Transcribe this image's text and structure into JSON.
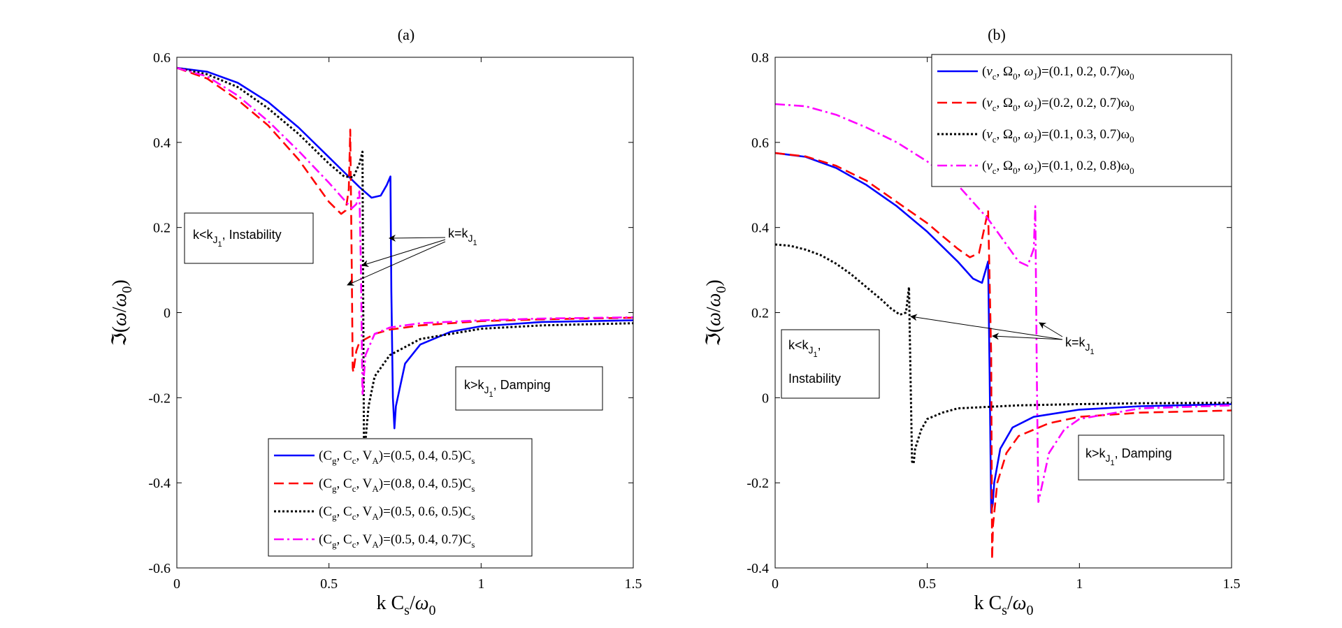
{
  "chart_data": [
    {
      "type": "line",
      "title": "(a)",
      "xlabel": "k C_s/ω_0",
      "ylabel": "ℑ(ω/ω_0)",
      "xlim": [
        0,
        1.5
      ],
      "ylim": [
        -0.6,
        0.6
      ],
      "xticks": [
        0,
        0.5,
        1,
        1.5
      ],
      "xtick_labels": [
        "0",
        "0.5",
        "1",
        "1.5"
      ],
      "yticks": [
        -0.6,
        -0.4,
        -0.2,
        0,
        0.2,
        0.4,
        0.6
      ],
      "ytick_labels": [
        "-0.6",
        "-0.4",
        "-0.2",
        "0",
        "0.2",
        "0.4",
        "0.6"
      ],
      "legend_position": "bottom-center",
      "legend_var_labels": [
        "C",
        "g",
        "C",
        "c",
        "V",
        "A"
      ],
      "legend_sub": "s",
      "series": [
        {
          "name": "(C_g, C_c, V_A)=(0.5, 0.4, 0.5)C_s",
          "values_text": "=(0.5, 0.4, 0.5)C",
          "color": "#0000ff",
          "style": "solid",
          "x": [
            0,
            0.1,
            0.2,
            0.3,
            0.4,
            0.5,
            0.55,
            0.6,
            0.64,
            0.67,
            0.69,
            0.702,
            0.705,
            0.71,
            0.715,
            0.72,
            0.75,
            0.8,
            0.9,
            1.0,
            1.2,
            1.5
          ],
          "y": [
            0.575,
            0.566,
            0.54,
            0.495,
            0.435,
            0.365,
            0.33,
            0.295,
            0.27,
            0.275,
            0.3,
            0.32,
            0.05,
            -0.2,
            -0.272,
            -0.22,
            -0.12,
            -0.075,
            -0.045,
            -0.032,
            -0.022,
            -0.018
          ]
        },
        {
          "name": "(C_g, C_c, V_A)=(0.8, 0.4, 0.5)C_s",
          "values_text": "=(0.8, 0.4, 0.5)C",
          "color": "#ff0000",
          "style": "dashed",
          "x": [
            0,
            0.1,
            0.2,
            0.3,
            0.4,
            0.45,
            0.5,
            0.54,
            0.555,
            0.565,
            0.57,
            0.575,
            0.578,
            0.58,
            0.59,
            0.6,
            0.65,
            0.7,
            0.8,
            1.0,
            1.2,
            1.5
          ],
          "y": [
            0.575,
            0.55,
            0.5,
            0.44,
            0.36,
            0.31,
            0.26,
            0.232,
            0.24,
            0.29,
            0.43,
            0.1,
            -0.13,
            -0.14,
            -0.09,
            -0.07,
            -0.05,
            -0.04,
            -0.03,
            -0.02,
            -0.016,
            -0.012
          ]
        },
        {
          "name": "(C_g, C_c, V_A)=(0.5, 0.6, 0.5)C_s",
          "values_text": "=(0.5, 0.6, 0.5)C",
          "color": "#000000",
          "style": "dotted",
          "x": [
            0,
            0.1,
            0.2,
            0.3,
            0.4,
            0.5,
            0.55,
            0.58,
            0.6,
            0.61,
            0.612,
            0.615,
            0.62,
            0.63,
            0.65,
            0.7,
            0.8,
            1.0,
            1.2,
            1.5
          ],
          "y": [
            0.575,
            0.56,
            0.53,
            0.48,
            0.42,
            0.35,
            0.32,
            0.318,
            0.35,
            0.378,
            0.1,
            -0.3,
            -0.3,
            -0.22,
            -0.15,
            -0.1,
            -0.062,
            -0.038,
            -0.03,
            -0.025
          ]
        },
        {
          "name": "(C_g, C_c, V_A)=(0.5, 0.4, 0.7)C_s",
          "values_text": "=(0.5, 0.4, 0.7)C",
          "color": "#ff00ff",
          "style": "dashdot",
          "x": [
            0,
            0.1,
            0.2,
            0.3,
            0.4,
            0.5,
            0.55,
            0.575,
            0.59,
            0.6,
            0.605,
            0.61,
            0.62,
            0.65,
            0.7,
            0.8,
            1.0,
            1.2,
            1.5
          ],
          "y": [
            0.575,
            0.555,
            0.51,
            0.45,
            0.38,
            0.305,
            0.265,
            0.245,
            0.255,
            0.285,
            0.1,
            -0.195,
            -0.1,
            -0.05,
            -0.035,
            -0.025,
            -0.018,
            -0.014,
            -0.011
          ]
        }
      ],
      "annotations": {
        "left_box": "k<k",
        "left_box_sub": "J",
        "left_box_subsub": "1",
        "left_box_tail": ", Instability",
        "right_box": "k>k",
        "right_box_sub": "J",
        "right_box_subsub": "1",
        "right_box_tail": ", Damping",
        "arrow_label": "k=k",
        "arrow_label_sub": "J",
        "arrow_label_subsub": "1"
      }
    },
    {
      "type": "line",
      "title": "(b)",
      "xlabel": "k C_s/ω_0",
      "ylabel": "ℑ(ω/ω_0)",
      "xlim": [
        0,
        1.5
      ],
      "ylim": [
        -0.4,
        0.8
      ],
      "xticks": [
        0,
        0.5,
        1,
        1.5
      ],
      "xtick_labels": [
        "0",
        "0.5",
        "1",
        "1.5"
      ],
      "yticks": [
        -0.4,
        -0.2,
        0,
        0.2,
        0.4,
        0.6,
        0.8
      ],
      "ytick_labels": [
        "-0.4",
        "-0.2",
        "0",
        "0.2",
        "0.4",
        "0.6",
        "0.8"
      ],
      "legend_position": "top-right",
      "legend_var_labels": [
        "ν",
        "c",
        "Ω",
        "0",
        "ω",
        "J"
      ],
      "legend_sub": "0",
      "series": [
        {
          "name": "(ν_c, Ω_0, ω_J)=(0.1, 0.2, 0.7)ω_0",
          "values_text": "=(0.1, 0.2, 0.7)ω",
          "color": "#0000ff",
          "style": "solid",
          "x": [
            0,
            0.1,
            0.2,
            0.3,
            0.4,
            0.5,
            0.6,
            0.65,
            0.68,
            0.7,
            0.705,
            0.71,
            0.715,
            0.72,
            0.74,
            0.78,
            0.85,
            1.0,
            1.2,
            1.5
          ],
          "y": [
            0.575,
            0.566,
            0.54,
            0.5,
            0.45,
            0.39,
            0.32,
            0.28,
            0.27,
            0.32,
            0.05,
            -0.27,
            -0.25,
            -0.2,
            -0.12,
            -0.07,
            -0.045,
            -0.028,
            -0.02,
            -0.015
          ]
        },
        {
          "name": "(ν_c, Ω_0, ω_J)=(0.2, 0.2, 0.7)ω_0",
          "values_text": "=(0.2, 0.2, 0.7)ω",
          "color": "#ff0000",
          "style": "dashed",
          "x": [
            0,
            0.1,
            0.2,
            0.3,
            0.4,
            0.5,
            0.55,
            0.6,
            0.64,
            0.67,
            0.7,
            0.71,
            0.713,
            0.716,
            0.73,
            0.76,
            0.8,
            0.9,
            1.0,
            1.2,
            1.5
          ],
          "y": [
            0.575,
            0.567,
            0.545,
            0.51,
            0.46,
            0.41,
            0.38,
            0.35,
            0.33,
            0.34,
            0.44,
            0.1,
            -0.38,
            -0.3,
            -0.2,
            -0.13,
            -0.09,
            -0.06,
            -0.045,
            -0.035,
            -0.03
          ]
        },
        {
          "name": "(ν_c, Ω_0, ω_J)=(0.1, 0.3, 0.7)ω_0",
          "values_text": "=(0.1, 0.3, 0.7)ω",
          "color": "#000000",
          "style": "dotted",
          "x": [
            0,
            0.05,
            0.1,
            0.15,
            0.2,
            0.25,
            0.3,
            0.35,
            0.38,
            0.41,
            0.43,
            0.44,
            0.445,
            0.45,
            0.455,
            0.46,
            0.48,
            0.5,
            0.55,
            0.6,
            0.8,
            1.0,
            1.2,
            1.5
          ],
          "y": [
            0.36,
            0.357,
            0.348,
            0.335,
            0.315,
            0.29,
            0.26,
            0.23,
            0.21,
            0.195,
            0.2,
            0.26,
            0.05,
            -0.15,
            -0.155,
            -0.12,
            -0.075,
            -0.05,
            -0.035,
            -0.025,
            -0.018,
            -0.015,
            -0.013,
            -0.012
          ]
        },
        {
          "name": "(ν_c, Ω_0, ω_J)=(0.1, 0.2, 0.8)ω_0",
          "values_text": "=(0.1, 0.2, 0.8)ω",
          "color": "#ff00ff",
          "style": "dashdot",
          "x": [
            0,
            0.1,
            0.2,
            0.3,
            0.4,
            0.5,
            0.6,
            0.7,
            0.75,
            0.8,
            0.83,
            0.85,
            0.855,
            0.86,
            0.865,
            0.87,
            0.9,
            0.95,
            1.0,
            1.2,
            1.5
          ],
          "y": [
            0.69,
            0.685,
            0.665,
            0.635,
            0.6,
            0.555,
            0.5,
            0.42,
            0.37,
            0.32,
            0.31,
            0.35,
            0.45,
            0.05,
            -0.245,
            -0.23,
            -0.13,
            -0.075,
            -0.05,
            -0.025,
            -0.018
          ]
        }
      ],
      "annotations": {
        "left_box": "k<k",
        "left_box_sub": "J",
        "left_box_subsub": "1",
        "left_box_tail": ",",
        "left_box_line2": "Instability",
        "right_box": "k>k",
        "right_box_sub": "J",
        "right_box_subsub": "1",
        "right_box_tail": ", Damping",
        "arrow_label": "k=k",
        "arrow_label_sub": "J",
        "arrow_label_subsub": "1"
      }
    }
  ]
}
